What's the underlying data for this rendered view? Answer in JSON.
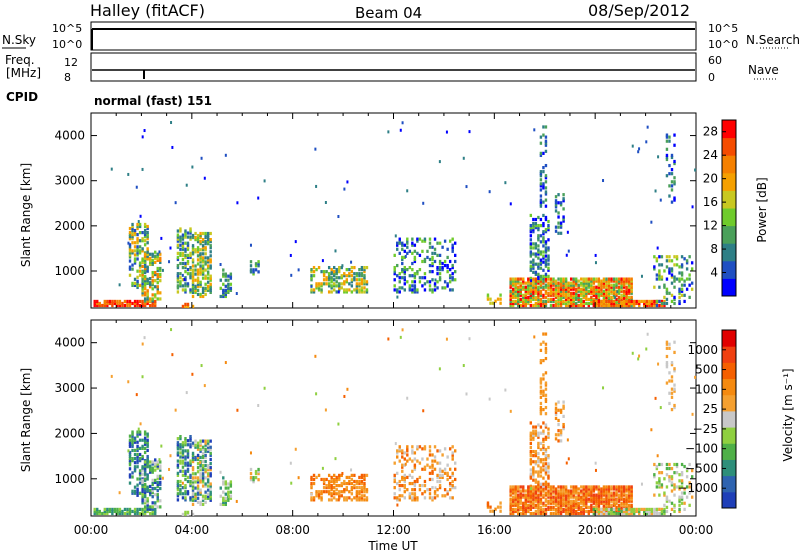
{
  "header": {
    "station": "Halley (fitACF)",
    "beam": "Beam 04",
    "date": "08/Sep/2012"
  },
  "strip_panels": {
    "nsky": {
      "label": "N.Sky",
      "left_ticks": [
        "10^5",
        "10^0"
      ],
      "right_ticks": [
        "10^5",
        "10^0"
      ],
      "right_label": "N.Search"
    },
    "freq": {
      "label_line1": "Freq.",
      "label_line2": "[MHz]",
      "left_ticks": [
        "12",
        "8"
      ],
      "right_ticks": [
        "60",
        "0"
      ],
      "right_label": "Nave"
    },
    "cpid": {
      "label": "CPID",
      "text": "normal (fast) 151"
    }
  },
  "chart_data": [
    {
      "type": "heatmap",
      "title": "",
      "xlabel": "Time UT",
      "ylabel": "Slant Range [km]",
      "xlim": [
        0,
        24
      ],
      "ylim": [
        180,
        4500
      ],
      "x_ticks": [
        "00:00",
        "04:00",
        "08:00",
        "12:00",
        "16:00",
        "20:00",
        "00:00"
      ],
      "y_ticks": [
        "1000",
        "2000",
        "3000",
        "4000"
      ],
      "colorbar": {
        "label": "Power [dB]",
        "ticks": [
          "4",
          "8",
          "12",
          "16",
          "20",
          "24",
          "28"
        ],
        "range": [
          0,
          30
        ],
        "colors": [
          "#0000ff",
          "#1f4fc2",
          "#2e7f86",
          "#4aa05a",
          "#6fcb2c",
          "#c8c820",
          "#f5a000",
          "#f58000",
          "#f54c00",
          "#ff0000"
        ]
      }
    },
    {
      "type": "heatmap",
      "title": "",
      "xlabel": "Time UT",
      "ylabel": "Slant Range [km]",
      "xlim": [
        0,
        24
      ],
      "ylim": [
        180,
        4500
      ],
      "x_ticks": [
        "00:00",
        "04:00",
        "08:00",
        "12:00",
        "16:00",
        "20:00",
        "00:00"
      ],
      "y_ticks": [
        "1000",
        "2000",
        "3000",
        "4000"
      ],
      "colorbar": {
        "label": "Velocity [m s⁻¹]",
        "ticks": [
          "1000",
          "500",
          "100",
          "25",
          "−25",
          "−100",
          "−500",
          "−1000"
        ],
        "colors": [
          "#1f3fb8",
          "#2e63b0",
          "#2e8f7a",
          "#4fb048",
          "#8fd040",
          "#c8c8c8",
          "#f5a030",
          "#f58a10",
          "#f56000",
          "#f04010",
          "#e00000"
        ]
      }
    }
  ]
}
